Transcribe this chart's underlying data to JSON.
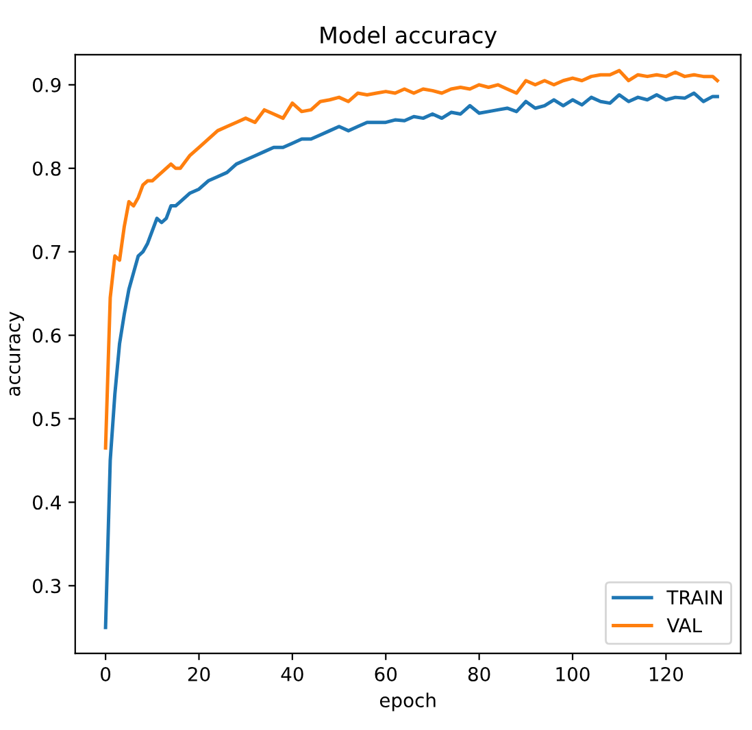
{
  "chart_data": {
    "type": "line",
    "title": "Model accuracy",
    "xlabel": "epoch",
    "ylabel": "accuracy",
    "xlim": [
      -6.5,
      136
    ],
    "ylim": [
      0.219,
      0.936
    ],
    "xticks": [
      0,
      20,
      40,
      60,
      80,
      100,
      120
    ],
    "yticks": [
      0.3,
      0.4,
      0.5,
      0.6,
      0.7,
      0.8,
      0.9
    ],
    "legend": "bottom right",
    "grid": false,
    "marker": "none",
    "line_style": "solid",
    "series": [
      {
        "name": "TRAIN",
        "color": "#1f77b4",
        "x": [
          0,
          1,
          2,
          3,
          4,
          5,
          6,
          7,
          8,
          9,
          10,
          11,
          12,
          13,
          14,
          15,
          16,
          18,
          20,
          22,
          24,
          26,
          28,
          30,
          32,
          34,
          36,
          38,
          40,
          42,
          44,
          46,
          48,
          50,
          52,
          54,
          56,
          58,
          60,
          62,
          64,
          66,
          68,
          70,
          72,
          74,
          76,
          78,
          80,
          82,
          84,
          86,
          88,
          90,
          92,
          94,
          96,
          98,
          100,
          102,
          104,
          106,
          108,
          110,
          112,
          114,
          116,
          118,
          120,
          122,
          124,
          126,
          128,
          130,
          131
        ],
        "values": [
          0.25,
          0.45,
          0.53,
          0.59,
          0.625,
          0.655,
          0.675,
          0.695,
          0.7,
          0.71,
          0.725,
          0.74,
          0.735,
          0.74,
          0.755,
          0.755,
          0.76,
          0.77,
          0.775,
          0.785,
          0.79,
          0.795,
          0.805,
          0.81,
          0.815,
          0.82,
          0.825,
          0.825,
          0.83,
          0.835,
          0.835,
          0.84,
          0.845,
          0.85,
          0.845,
          0.85,
          0.855,
          0.855,
          0.855,
          0.858,
          0.857,
          0.862,
          0.86,
          0.865,
          0.86,
          0.867,
          0.865,
          0.875,
          0.866,
          0.868,
          0.87,
          0.872,
          0.868,
          0.88,
          0.872,
          0.875,
          0.882,
          0.875,
          0.882,
          0.876,
          0.885,
          0.88,
          0.878,
          0.888,
          0.88,
          0.885,
          0.882,
          0.888,
          0.882,
          0.885,
          0.884,
          0.89,
          0.88,
          0.886,
          0.886
        ]
      },
      {
        "name": "VAL",
        "color": "#ff7f0e",
        "x": [
          0,
          1,
          2,
          3,
          4,
          5,
          6,
          7,
          8,
          9,
          10,
          12,
          14,
          15,
          16,
          18,
          20,
          22,
          24,
          26,
          28,
          30,
          32,
          34,
          36,
          38,
          40,
          42,
          44,
          46,
          48,
          50,
          52,
          54,
          56,
          58,
          60,
          62,
          64,
          66,
          68,
          70,
          72,
          74,
          76,
          78,
          80,
          82,
          84,
          86,
          88,
          90,
          92,
          94,
          96,
          98,
          100,
          102,
          104,
          106,
          108,
          110,
          112,
          114,
          116,
          118,
          120,
          122,
          124,
          126,
          128,
          130,
          131
        ],
        "values": [
          0.465,
          0.645,
          0.695,
          0.69,
          0.73,
          0.76,
          0.755,
          0.765,
          0.78,
          0.785,
          0.785,
          0.795,
          0.805,
          0.8,
          0.8,
          0.815,
          0.825,
          0.835,
          0.845,
          0.85,
          0.855,
          0.86,
          0.855,
          0.87,
          0.865,
          0.86,
          0.878,
          0.868,
          0.87,
          0.88,
          0.882,
          0.885,
          0.88,
          0.89,
          0.888,
          0.89,
          0.892,
          0.89,
          0.895,
          0.89,
          0.895,
          0.893,
          0.89,
          0.895,
          0.897,
          0.895,
          0.9,
          0.897,
          0.9,
          0.895,
          0.89,
          0.905,
          0.9,
          0.905,
          0.9,
          0.905,
          0.908,
          0.905,
          0.91,
          0.912,
          0.912,
          0.917,
          0.905,
          0.912,
          0.91,
          0.912,
          0.91,
          0.915,
          0.91,
          0.912,
          0.91,
          0.91,
          0.905
        ]
      }
    ]
  }
}
